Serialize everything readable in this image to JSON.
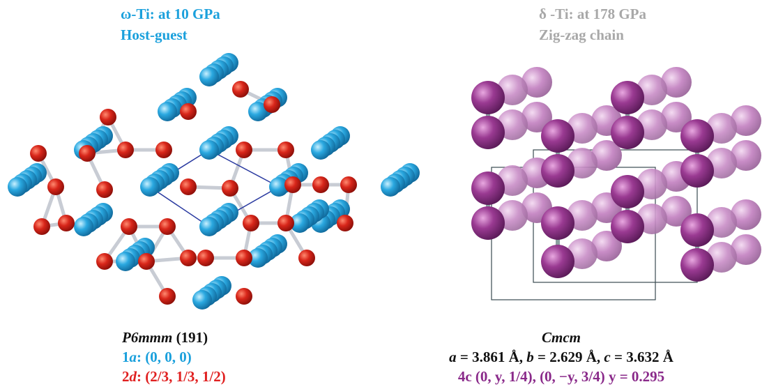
{
  "left": {
    "title": "ω-Ti: at 10 GPa",
    "subtitle": "Host-guest",
    "space_group": {
      "name": "P6mmm",
      "number": "(191)"
    },
    "sites": [
      {
        "mult": "1",
        "letter": "a",
        "coords": ": (0, 0, 0)"
      },
      {
        "mult": "2",
        "letter": "d",
        "coords": ": (2/3, 1/3, 1/2)"
      }
    ]
  },
  "right": {
    "title": "δ -Ti: at 178 GPa",
    "subtitle": "Zig-zag chain",
    "space_group": "Cmcm",
    "lattice": [
      {
        "symbol": "a",
        "text": " = 3.861 Å, "
      },
      {
        "symbol": "b",
        "text": " = 2.629 Å, "
      },
      {
        "symbol": "c",
        "text": " = 3.632 Å"
      }
    ],
    "sites": "4c (0, y, 1/4), (0, −y, 3/4) y = 0.295"
  }
}
